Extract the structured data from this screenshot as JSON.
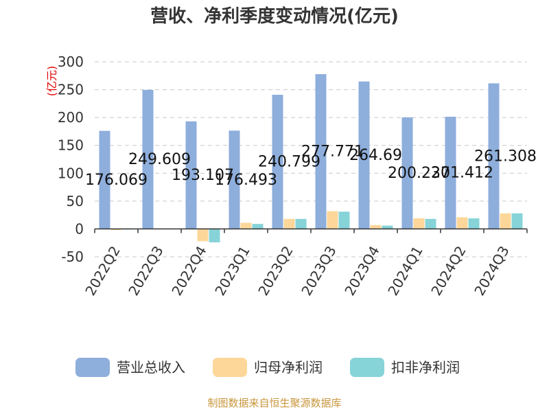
{
  "chart_data": {
    "type": "bar",
    "title": "营收、净利季度变动情况(亿元)",
    "ylabel": "(亿元)",
    "ylim": [
      -50,
      300
    ],
    "yticks": [
      "-50",
      "0",
      "50",
      "100",
      "150",
      "200",
      "250",
      "300"
    ],
    "grid": true,
    "legend_position": "bottom",
    "categories": [
      "2022Q2",
      "2022Q3",
      "2022Q4",
      "2023Q1",
      "2023Q2",
      "2023Q3",
      "2023Q4",
      "2024Q1",
      "2024Q2",
      "2024Q3"
    ],
    "series": [
      {
        "name": "营业总收入",
        "color": "#8eaedc",
        "values": [
          176.069,
          249.609,
          193.107,
          176.493,
          240.799,
          277.771,
          264.69,
          200.237,
          201.412,
          261.308
        ],
        "labels": [
          "176.069",
          "249.609",
          "193.107",
          "176.493",
          "240.799",
          "277.771",
          "264.69",
          "200.237",
          "201.412",
          "261.308"
        ]
      },
      {
        "name": "归母净利润",
        "color": "#fdd79a",
        "values": [
          -2,
          0,
          -22,
          11,
          18,
          32,
          7,
          19,
          21,
          28
        ]
      },
      {
        "name": "扣非净利润",
        "color": "#86d3d8",
        "values": [
          -1,
          0,
          -24,
          9,
          18,
          31,
          6,
          18,
          19,
          28
        ]
      }
    ]
  },
  "source": "制图数据来自恒生聚源数据库"
}
